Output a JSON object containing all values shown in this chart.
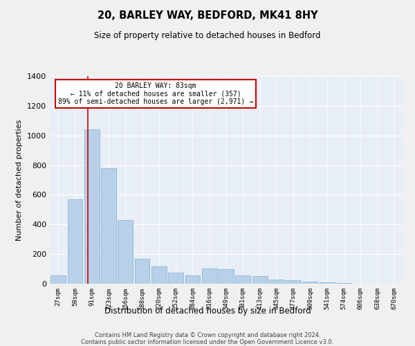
{
  "title": "20, BARLEY WAY, BEDFORD, MK41 8HY",
  "subtitle": "Size of property relative to detached houses in Bedford",
  "xlabel": "Distribution of detached houses by size in Bedford",
  "ylabel": "Number of detached properties",
  "categories": [
    "27sqm",
    "59sqm",
    "91sqm",
    "123sqm",
    "156sqm",
    "188sqm",
    "220sqm",
    "252sqm",
    "284sqm",
    "316sqm",
    "349sqm",
    "381sqm",
    "413sqm",
    "445sqm",
    "477sqm",
    "509sqm",
    "541sqm",
    "574sqm",
    "606sqm",
    "638sqm",
    "670sqm"
  ],
  "values": [
    55,
    570,
    1040,
    780,
    430,
    170,
    115,
    75,
    55,
    105,
    100,
    55,
    50,
    30,
    25,
    12,
    8,
    4,
    2,
    2,
    1
  ],
  "bar_color": "#b8d0e8",
  "bar_edge_color": "#7aafd4",
  "background_color": "#e8eef5",
  "grid_color": "#ffffff",
  "annotation_line1": "20 BARLEY WAY: 83sqm",
  "annotation_line2": "← 11% of detached houses are smaller (357)",
  "annotation_line3": "89% of semi-detached houses are larger (2,971) →",
  "annotation_box_color": "#ffffff",
  "annotation_box_edge": "#cc0000",
  "redline_color": "#cc0000",
  "redline_xindex": 1.75,
  "ylim": [
    0,
    1400
  ],
  "yticks": [
    0,
    200,
    400,
    600,
    800,
    1000,
    1200,
    1400
  ],
  "footer_line1": "Contains HM Land Registry data © Crown copyright and database right 2024.",
  "footer_line2": "Contains public sector information licensed under the Open Government Licence v3.0."
}
